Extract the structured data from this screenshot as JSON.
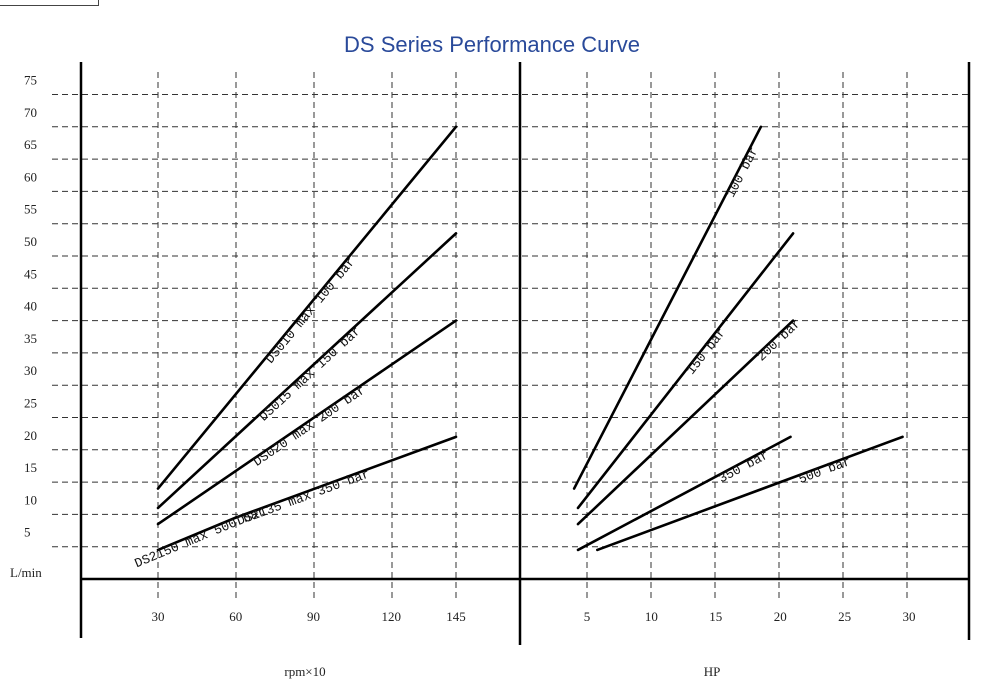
{
  "title": "DS Series Performance Curve",
  "colors": {
    "title": "#2a4a9a",
    "line": "#000000",
    "grid": "#333333"
  },
  "y_unit": "L/min",
  "y_ticks": [
    "5",
    "10",
    "15",
    "20",
    "25",
    "30",
    "35",
    "40",
    "45",
    "50",
    "55",
    "60",
    "65",
    "70",
    "75"
  ],
  "chart_data": [
    {
      "type": "line",
      "xlabel": "rpm×10",
      "ylabel": "L/min",
      "x_ticks": [
        "30",
        "60",
        "90",
        "120",
        "145"
      ],
      "ylim": [
        0,
        75
      ],
      "grid": true,
      "series": [
        {
          "name": "DS010 max 100 bar",
          "x": [
            30,
            145
          ],
          "y": [
            14,
            70
          ]
        },
        {
          "name": "DS015 max 150 bar",
          "x": [
            30,
            145
          ],
          "y": [
            11,
            53.5
          ]
        },
        {
          "name": "DS020 max 200 bar",
          "x": [
            30,
            145
          ],
          "y": [
            8.5,
            40
          ]
        },
        {
          "name": "DS2135 max 350 bar",
          "x": [
            60,
            145
          ],
          "y": [
            9.5,
            22
          ]
        },
        {
          "name": "DS2150 max 500 bar",
          "x": [
            30,
            60
          ],
          "y": [
            4.5,
            9.5
          ]
        }
      ]
    },
    {
      "type": "line",
      "xlabel": "HP",
      "ylabel": "L/min",
      "x_ticks": [
        "5",
        "10",
        "15",
        "20",
        "25",
        "30"
      ],
      "ylim": [
        0,
        75
      ],
      "grid": true,
      "series": [
        {
          "name": "100 bar",
          "x": [
            4,
            18.5
          ],
          "y": [
            14,
            70
          ]
        },
        {
          "name": "150 bar",
          "x": [
            4.3,
            21
          ],
          "y": [
            11,
            53.5
          ]
        },
        {
          "name": "200 bar",
          "x": [
            4.3,
            21
          ],
          "y": [
            8.5,
            40
          ]
        },
        {
          "name": "350 bar",
          "x": [
            4.3,
            20.8
          ],
          "y": [
            4.5,
            22
          ]
        },
        {
          "name": "500 bar",
          "x": [
            5.8,
            29.5
          ],
          "y": [
            4.5,
            22
          ]
        }
      ]
    }
  ]
}
